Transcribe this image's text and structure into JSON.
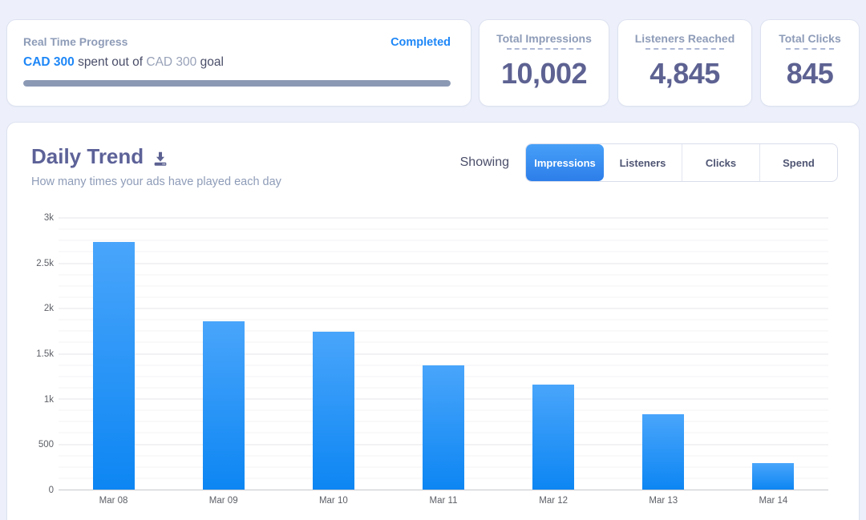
{
  "progress_card": {
    "title": "Real Time Progress",
    "status": "Completed",
    "spent_amount": "CAD 300",
    "spent_text": "spent out of",
    "goal_amount": "CAD 300",
    "goal_text": "goal",
    "progress_percent": 100
  },
  "stat_cards": [
    {
      "label": "Total Impressions",
      "value": "10,002"
    },
    {
      "label": "Listeners Reached",
      "value": "4,845"
    },
    {
      "label": "Total Clicks",
      "value": "845"
    }
  ],
  "daily_trend": {
    "title": "Daily Trend",
    "subtitle": "How many times your ads have played each day",
    "showing_label": "Showing",
    "download_icon": "download-icon",
    "tabs": [
      {
        "label": "Impressions",
        "active": true
      },
      {
        "label": "Listeners",
        "active": false
      },
      {
        "label": "Clicks",
        "active": false
      },
      {
        "label": "Spend",
        "active": false
      }
    ]
  },
  "chart_data": {
    "type": "bar",
    "title": "Daily Trend",
    "xlabel": "",
    "ylabel": "",
    "categories": [
      "Mar 08",
      "Mar 09",
      "Mar 10",
      "Mar 11",
      "Mar 12",
      "Mar 13",
      "Mar 14"
    ],
    "values": [
      2735,
      1860,
      1745,
      1372,
      1160,
      835,
      295
    ],
    "ylim": [
      0,
      3000
    ],
    "yticks": [
      0,
      500,
      1000,
      1500,
      2000,
      2500,
      3000
    ],
    "ytick_labels": [
      "0",
      "500",
      "1k",
      "1.5k",
      "2k",
      "2.5k",
      "3k"
    ],
    "minor_grid_step": 125,
    "grid": true,
    "legend": false,
    "bar_color_top": "#49a5fb",
    "bar_color_bottom": "#0d86f3"
  },
  "colors": {
    "page_background": "#edf0fa",
    "accent_blue": "#1e87f7",
    "heading_purple": "#5d6292",
    "muted_label": "#8e9cb8",
    "dark_text": "#4a4e69",
    "progress_bar": "#8b99b4",
    "active_tab_gradient_top": "#47a0f8",
    "active_tab_gradient_bottom": "#2d7ee9"
  }
}
